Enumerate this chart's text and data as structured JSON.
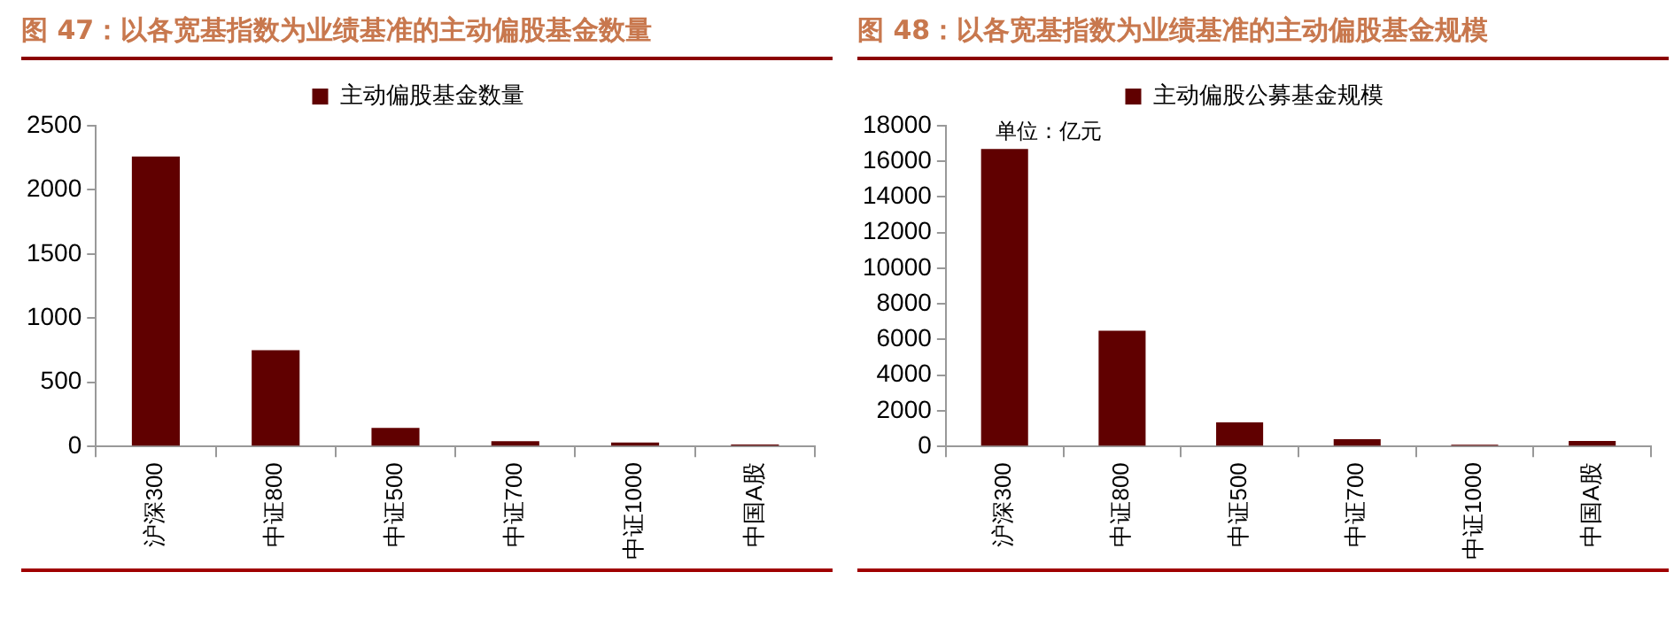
{
  "chart_data": [
    {
      "type": "bar",
      "title": "图 47：以各宽基指数为业绩基准的主动偏股基金数量",
      "categories": [
        "沪深300",
        "中证800",
        "中证500",
        "中证700",
        "中证1000",
        "中国A股"
      ],
      "series": [
        {
          "name": "主动偏股基金数量",
          "color": "#600000",
          "values": [
            2260,
            750,
            145,
            40,
            30,
            15
          ]
        }
      ],
      "ylim": [
        0,
        2500
      ],
      "yticks": [
        0,
        500,
        1000,
        1500,
        2000,
        2500
      ],
      "grid": false,
      "legend": "top"
    },
    {
      "type": "bar",
      "title": "图 48：以各宽基指数为业绩基准的主动偏股基金规模",
      "categories": [
        "沪深300",
        "中证800",
        "中证500",
        "中证700",
        "中证1000",
        "中国A股"
      ],
      "series": [
        {
          "name": "主动偏股公募基金规模",
          "color": "#600000",
          "values": [
            16700,
            6500,
            1350,
            400,
            100,
            300
          ]
        }
      ],
      "ylim": [
        0,
        18000
      ],
      "yticks": [
        0,
        2000,
        4000,
        6000,
        8000,
        10000,
        12000,
        14000,
        16000,
        18000
      ],
      "grid": false,
      "legend": "top",
      "annotations": [
        "单位：亿元"
      ]
    }
  ]
}
